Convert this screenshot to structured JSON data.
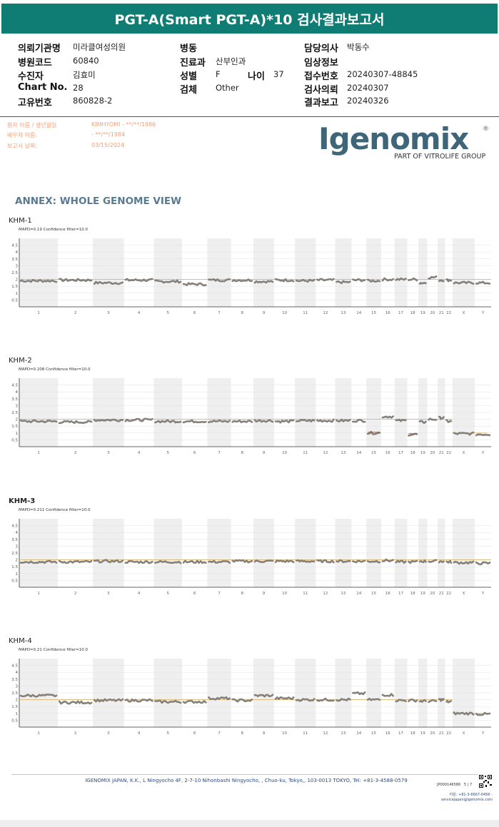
{
  "header": {
    "title": "PGT-A(Smart PGT-A)*10 검사결과보고서"
  },
  "info": {
    "institution_label": "의뢰기관명",
    "institution": "미라클여성의원",
    "hospital_code_label": "병원코드",
    "hospital_code": "60840",
    "patient_label": "수진자",
    "patient": "김효미",
    "chart_label": "Chart No.",
    "chart": "28",
    "unique_label": "고유번호",
    "unique": "860828-2",
    "ward_label": "병동",
    "ward": "",
    "dept_label": "진료과",
    "dept": "산부인과",
    "sex_label": "성별",
    "sex": "F",
    "age_label": "나이",
    "age": "37",
    "specimen_label": "검체",
    "specimen": "Other",
    "doctor_label": "담당의사",
    "doctor": "박동수",
    "clinical_label": "임상정보",
    "clinical": "",
    "receipt_label": "접수번호",
    "receipt": "20240307-48845",
    "request_label": "검사의뢰",
    "request": "20240307",
    "report_label": "결과보고",
    "report": "20240326"
  },
  "patient_block": {
    "name_label": "환자 이름 / 생년월일",
    "name_value": "KIMHYOMI - **/**/1986",
    "partner_label": "배우자 이름:",
    "partner_value": "- **/**/1984",
    "date_label": "보고서 날짜:",
    "date_value": "03/15/2024"
  },
  "logo": {
    "word": "Igenomix",
    "reg": "®",
    "sub": "PART OF VITROLIFE GROUP"
  },
  "annex_title": "ANNEX: WHOLE GENOME VIEW",
  "colors": {
    "header": "#0f7d73",
    "cnv": "#858079",
    "baseline": "#d9b56a",
    "band": "#efefef",
    "logo": "#3e6678"
  },
  "axis": {
    "y_ticks": [
      "4.5",
      "4",
      "3.5",
      "3",
      "2.5",
      "2",
      "1.5",
      "1",
      "0.5"
    ],
    "chromosomes": [
      "1",
      "2",
      "3",
      "4",
      "5",
      "6",
      "7",
      "8",
      "9",
      "10",
      "11",
      "12",
      "13",
      "14",
      "15",
      "16",
      "17",
      "18",
      "19",
      "20",
      "21",
      "22",
      "X",
      "Y"
    ]
  },
  "chart_data": [
    {
      "type": "scatter",
      "title": "KHM-1",
      "subtitle": "MAPD=0.19 Confidence filter=10.0",
      "ylim": [
        0,
        5
      ],
      "baseline": 2,
      "segments": [
        1.9,
        1.95,
        1.75,
        1.95,
        1.85,
        1.65,
        1.95,
        1.95,
        1.85,
        1.95,
        1.9,
        1.95,
        1.8,
        1.95,
        1.9,
        2.0,
        2.0,
        2.0,
        1.75,
        2.15,
        1.95,
        1.95,
        1.75,
        1.75
      ]
    },
    {
      "type": "scatter",
      "title": "KHM-2",
      "subtitle": "MAPD=0.208 Confidence filter=10.0",
      "ylim": [
        0,
        5
      ],
      "baseline": 2,
      "baseline_x_low": 1,
      "abnormal": [
        "15",
        "18"
      ],
      "segments": [
        1.85,
        1.8,
        1.95,
        1.95,
        1.85,
        1.85,
        1.85,
        1.85,
        1.9,
        1.85,
        1.9,
        1.9,
        1.9,
        1.9,
        1.0,
        2.2,
        1.9,
        0.9,
        1.8,
        2.0,
        2.1,
        1.85,
        0.95,
        0.9
      ]
    },
    {
      "type": "scatter",
      "title": "KHM-3",
      "subtitle": "MAPD=0.211 Confidence filter=10.0",
      "ylim": [
        0,
        5
      ],
      "baseline": 2,
      "segments": [
        1.85,
        1.85,
        1.9,
        1.85,
        1.85,
        1.85,
        1.85,
        1.9,
        1.9,
        1.9,
        1.9,
        1.9,
        1.9,
        1.9,
        1.9,
        1.95,
        1.85,
        1.85,
        1.9,
        1.9,
        1.9,
        1.85,
        1.8,
        1.75
      ]
    },
    {
      "type": "scatter",
      "title": "KHM-4",
      "subtitle": "MAPD=0.21 Confidence filter=10.0",
      "ylim": [
        0,
        5
      ],
      "baseline": 2,
      "baseline_x_low": 1,
      "segments": [
        2.3,
        1.8,
        1.95,
        1.95,
        1.85,
        1.85,
        2.1,
        1.95,
        2.3,
        2.1,
        2.0,
        2.0,
        2.0,
        2.45,
        2.0,
        2.35,
        1.95,
        1.95,
        1.9,
        1.9,
        2.0,
        1.85,
        1.0,
        0.95
      ]
    }
  ],
  "footer": {
    "company": "IGENOMIX JAPAN, K.K., L Ningyocho 4F, 2-7-10 Nihonbashi Ningyocho, , Chuo-ku, Tokyo,, 103-0013 TOKYO, Tel: +81-3-4588-0579",
    "doc_id": "JP000146586",
    "page": "5 | 7",
    "contact_tel": "지원: +81-3-6667-0456 -",
    "contact_mail": "servicejapan@igenomix.com"
  }
}
